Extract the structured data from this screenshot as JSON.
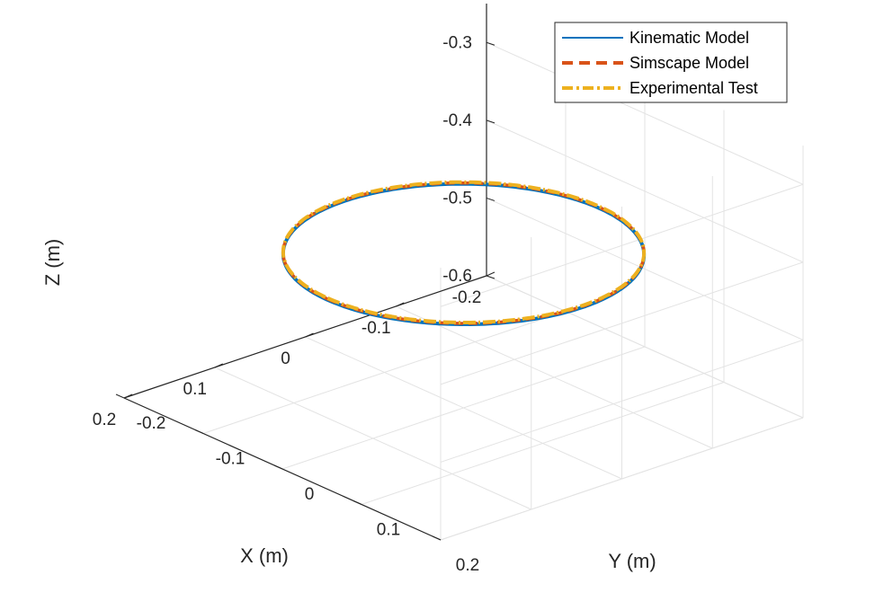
{
  "chart_data": {
    "type": "line",
    "projection": "3d",
    "xlabel": "X (m)",
    "ylabel": "Y (m)",
    "zlabel": "Z (m)",
    "xlim": [
      -0.2,
      0.2
    ],
    "ylim": [
      -0.2,
      0.2
    ],
    "zlim": [
      -0.6,
      -0.25
    ],
    "x_ticks": [
      -0.2,
      -0.1,
      0,
      0.1,
      0.2
    ],
    "x_tick_labels": [
      "-0.2",
      "-0.1",
      "0",
      "0.1",
      "0.2"
    ],
    "y_ticks": [
      -0.2,
      -0.1,
      0,
      0.1,
      0.2
    ],
    "y_tick_labels": [
      "-0.2",
      "-0.1",
      "0",
      "0.1",
      "0.2"
    ],
    "z_ticks": [
      -0.6,
      -0.5,
      -0.4,
      -0.3
    ],
    "z_tick_labels": [
      "-0.6",
      "-0.5",
      "-0.4",
      "-0.3"
    ],
    "grid": true,
    "legend_position": "top-right",
    "series": [
      {
        "name": "Kinematic Model",
        "color": "#0072BD",
        "line_style": "solid",
        "shape": "circle",
        "center": [
          0,
          0
        ],
        "radius": 0.15,
        "z": -0.4
      },
      {
        "name": "Simscape Model",
        "color": "#D95319",
        "line_style": "dashed",
        "shape": "circle",
        "center": [
          0,
          0
        ],
        "radius": 0.15,
        "z": -0.4
      },
      {
        "name": "Experimental Test",
        "color": "#EDB120",
        "line_style": "dash-dot",
        "shape": "circle",
        "center": [
          0,
          0
        ],
        "radius": 0.15,
        "z": -0.4
      }
    ]
  }
}
